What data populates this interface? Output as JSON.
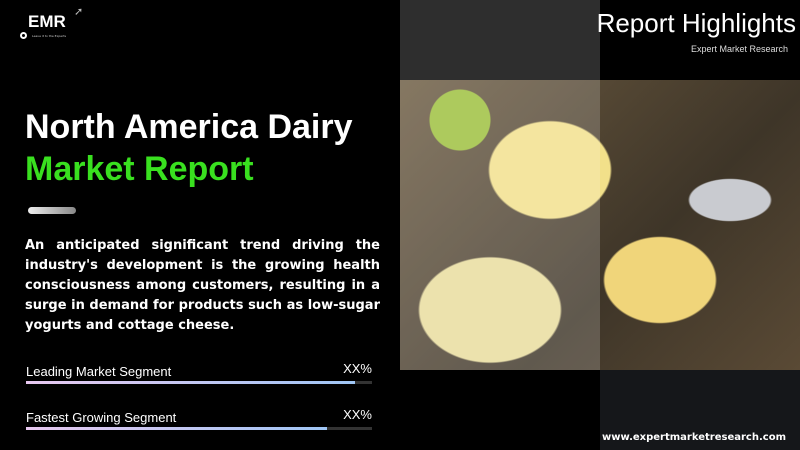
{
  "brand": {
    "logo_text": "EMR",
    "logo_tagline": "Leave it to the Experts"
  },
  "title": {
    "line1": "North America Dairy",
    "line2": "Market Report"
  },
  "description": "An anticipated significant trend driving the industry's development is the growing health consciousness among customers, resulting in a surge in demand for products such as low-sugar yogurts and cottage cheese.",
  "segments": [
    {
      "label": "Leading Market Segment",
      "value": "XX%",
      "fill_percent": 95
    },
    {
      "label": "Fastest Growing Segment",
      "value": "XX%",
      "fill_percent": 87
    }
  ],
  "highlights": {
    "title": "Report Highlights",
    "subtitle": "Expert Market Research"
  },
  "website": "www.expertmarketresearch.com",
  "colors": {
    "accent_green": "#39e01f",
    "background": "#000000"
  }
}
